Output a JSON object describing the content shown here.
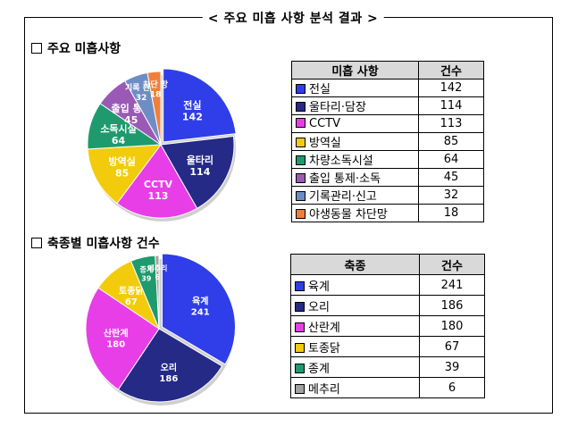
{
  "page": {
    "frame_title": "< 주요 미흡 사항 분석 결과 >"
  },
  "section1": {
    "title": "주요 미흡사항",
    "table_headers": [
      "미흡 사항",
      "건수"
    ]
  },
  "section2": {
    "title": "축종별 미흡사항 건수",
    "table_headers": [
      "축종",
      "건수"
    ]
  },
  "chart_data": [
    {
      "type": "pie",
      "title": "주요 미흡사항",
      "categories": [
        "전실",
        "울타리·담장",
        "CCTV",
        "방역실",
        "차량소독시설",
        "출입 통제·소독",
        "기록관리·신고",
        "야생동물 차단망"
      ],
      "slice_labels": [
        "전실",
        "울타리",
        "CCTV",
        "방역실",
        "소독시설",
        "출입 통제",
        "기록 관리",
        "차단 망"
      ],
      "values": [
        142,
        114,
        113,
        85,
        64,
        45,
        32,
        18
      ],
      "colors": [
        "#2f3ee8",
        "#242a86",
        "#e83ee8",
        "#f2cc0c",
        "#1f9a6e",
        "#9b59b6",
        "#6d8dc4",
        "#f07f3c"
      ]
    },
    {
      "type": "pie",
      "title": "축종별 미흡사항 건수",
      "categories": [
        "육계",
        "오리",
        "산란계",
        "토종닭",
        "종계",
        "메추리"
      ],
      "slice_labels": [
        "육계",
        "오리",
        "산란계",
        "토종닭",
        "종계",
        "메추리"
      ],
      "values": [
        241,
        186,
        180,
        67,
        39,
        6
      ],
      "colors": [
        "#2f3ee8",
        "#242a86",
        "#e83ee8",
        "#f2cc0c",
        "#1f9a6e",
        "#a0a0a0"
      ]
    }
  ]
}
